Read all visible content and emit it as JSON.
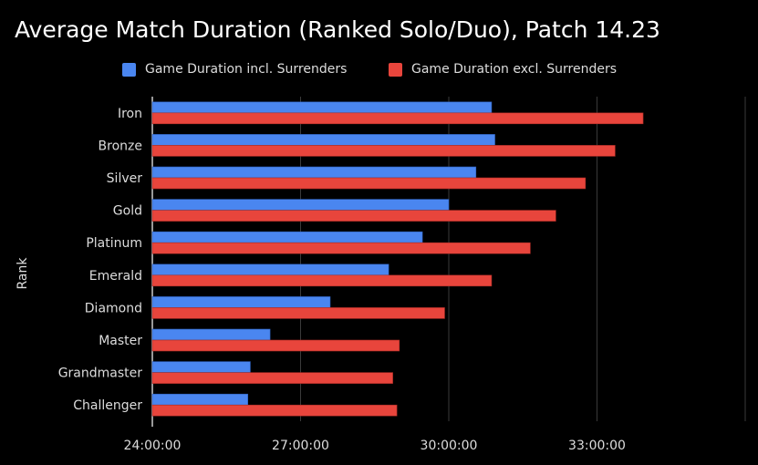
{
  "chart_data": {
    "type": "bar",
    "orientation": "horizontal",
    "title": "Average Match Duration (Ranked Solo/Duo), Patch 14.23",
    "xlabel": "",
    "ylabel": "Rank",
    "categories": [
      "Iron",
      "Bronze",
      "Silver",
      "Gold",
      "Platinum",
      "Emerald",
      "Diamond",
      "Master",
      "Grandmaster",
      "Challenger"
    ],
    "series": [
      {
        "name": "Game Duration incl. Surrenders",
        "color": "#4a86f0",
        "values": [
          "30:52",
          "30:56",
          "30:33",
          "30:00",
          "29:28",
          "28:47",
          "27:36",
          "26:23",
          "25:59",
          "25:56"
        ],
        "seconds": [
          1852,
          1856,
          1833,
          1800,
          1768,
          1727,
          1656,
          1583,
          1559,
          1556
        ]
      },
      {
        "name": "Game Duration excl. Surrenders",
        "color": "#e8453c",
        "values": [
          "33:56",
          "33:22",
          "32:46",
          "32:10",
          "31:39",
          "30:52",
          "29:55",
          "29:00",
          "28:52",
          "28:57"
        ],
        "seconds": [
          2036,
          2002,
          1966,
          1930,
          1899,
          1852,
          1795,
          1740,
          1732,
          1737
        ]
      }
    ],
    "x_ticks": [
      "24:00:00",
      "27:00:00",
      "30:00:00",
      "33:00:00"
    ],
    "xlim_seconds": [
      1440,
      2160
    ],
    "grid": true,
    "legend_position": "top"
  }
}
